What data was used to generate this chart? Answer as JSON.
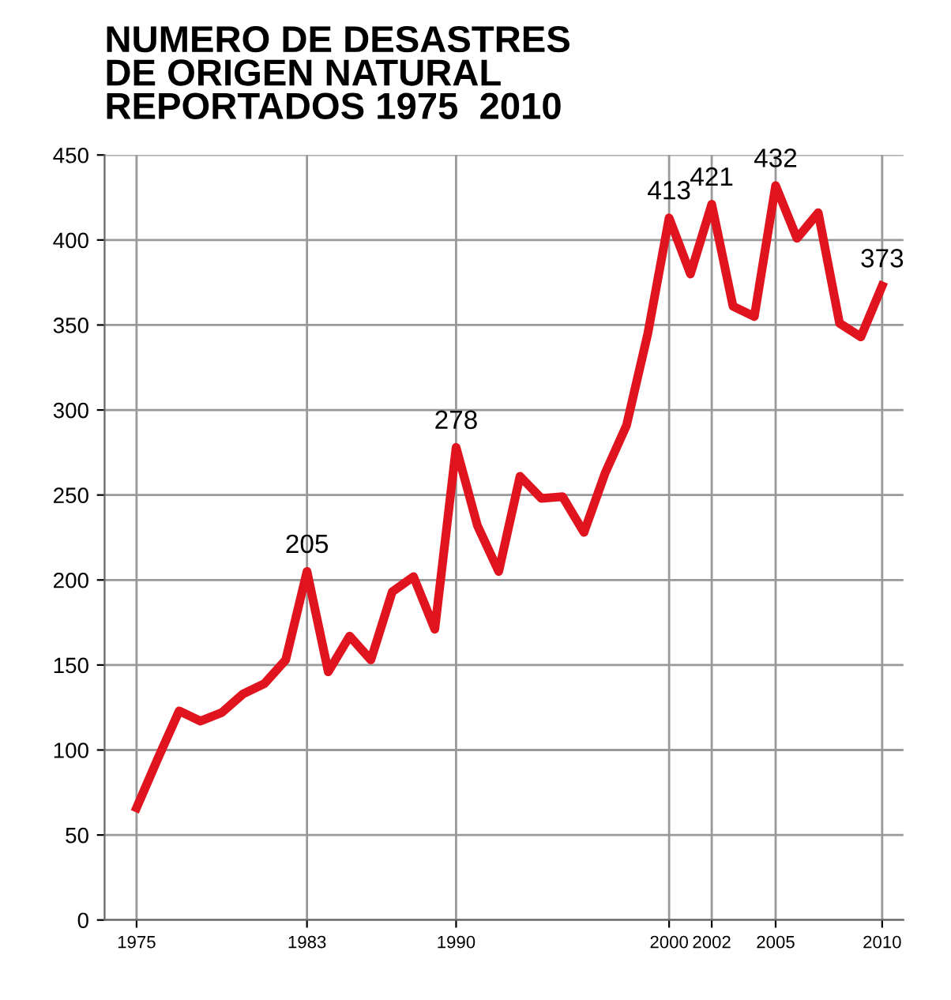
{
  "chart_data": {
    "type": "line",
    "title": "NUMERO DE DESASTRES\nDE ORIGEN NATURAL\nREPORTADOS 1975  2010",
    "x": [
      1975,
      1976,
      1977,
      1978,
      1979,
      1980,
      1981,
      1982,
      1983,
      1984,
      1985,
      1986,
      1987,
      1988,
      1989,
      1990,
      1991,
      1992,
      1993,
      1994,
      1995,
      1996,
      1997,
      1998,
      1999,
      2000,
      2001,
      2002,
      2003,
      2004,
      2005,
      2006,
      2007,
      2008,
      2009,
      2010
    ],
    "series": [
      {
        "color": "#e0141e",
        "values": [
          66,
          95,
          123,
          117,
          122,
          133,
          139,
          153,
          205,
          146,
          167,
          153,
          193,
          202,
          171,
          278,
          232,
          205,
          261,
          248,
          249,
          228,
          263,
          291,
          345,
          413,
          380,
          421,
          361,
          355,
          432,
          401,
          416,
          351,
          343,
          373
        ]
      }
    ],
    "annotations": [
      {
        "text": "205",
        "x": 1983,
        "y": 205
      },
      {
        "text": "278",
        "x": 1990,
        "y": 278
      },
      {
        "text": "413",
        "x": 2000,
        "y": 413
      },
      {
        "text": "421",
        "x": 2002,
        "y": 421
      },
      {
        "text": "432",
        "x": 2005,
        "y": 432
      },
      {
        "text": "373",
        "x": 2010,
        "y": 373
      }
    ],
    "xlim": [
      1973.5,
      2011
    ],
    "xticks": [
      1975,
      1983,
      1990,
      2000,
      2002,
      2005,
      2010
    ],
    "ylim": [
      0,
      450
    ],
    "yticks": [
      0,
      50,
      100,
      150,
      200,
      250,
      300,
      350,
      400,
      450
    ],
    "grid": true,
    "line_style": "solid",
    "marker": "none",
    "legend": false
  }
}
